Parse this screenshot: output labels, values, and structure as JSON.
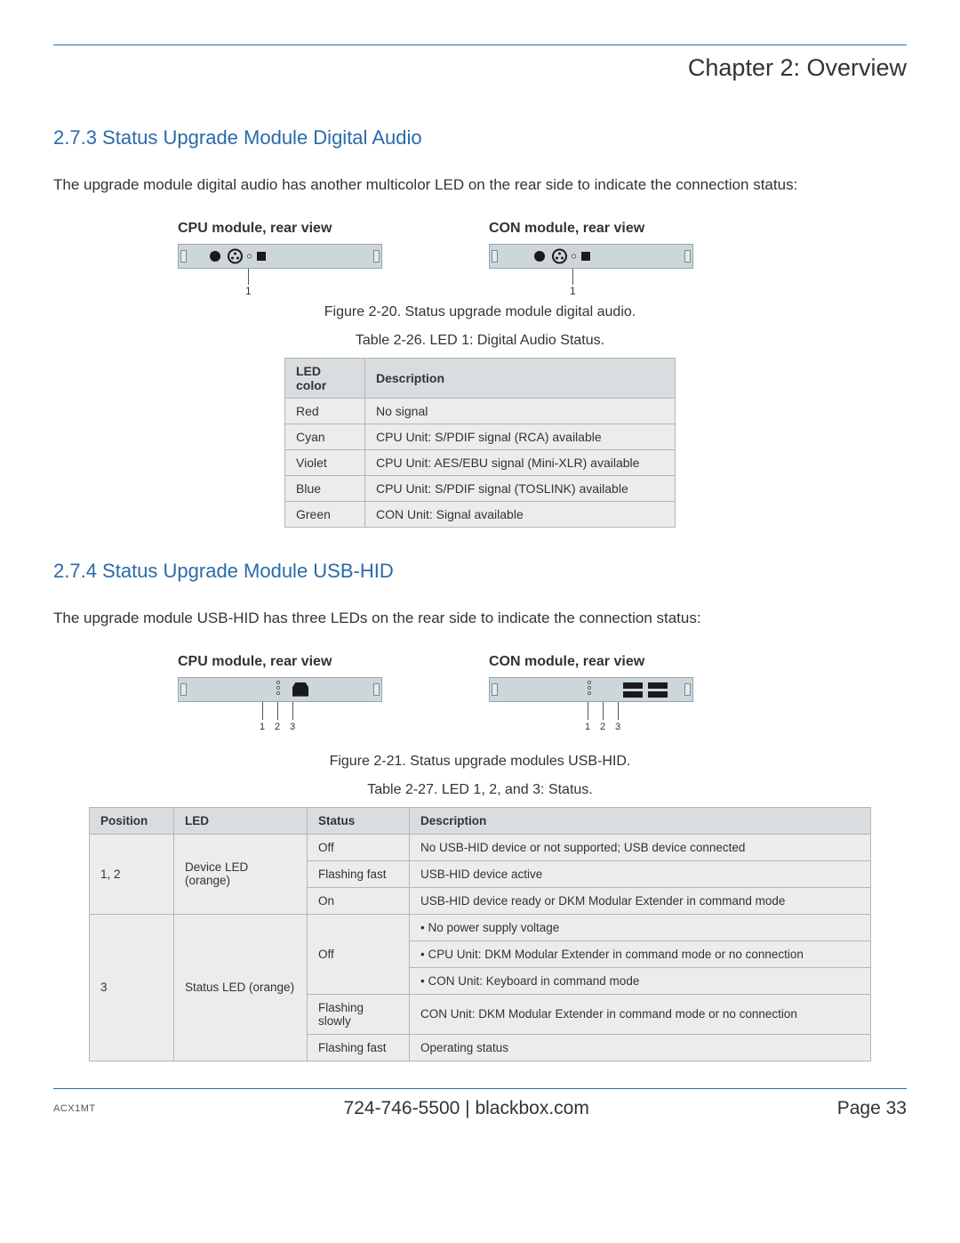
{
  "header": {
    "chapter_title": "Chapter 2: Overview"
  },
  "section1": {
    "heading": "2.7.3 Status Upgrade Module Digital Audio",
    "intro": "The upgrade module digital audio has another multicolor LED on the rear side to indicate the connection status:",
    "cpu_label": "CPU module, rear view",
    "con_label": "CON module, rear view",
    "fig_caption": "Figure 2-20. Status upgrade module digital audio.",
    "table_caption": "Table 2-26. LED 1: Digital Audio Status.",
    "callout_1": "1",
    "table": {
      "headers": [
        "LED color",
        "Description"
      ],
      "rows": [
        [
          "Red",
          "No signal"
        ],
        [
          "Cyan",
          "CPU Unit: S/PDIF signal (RCA) available"
        ],
        [
          "Violet",
          "CPU Unit: AES/EBU signal (Mini-XLR) available"
        ],
        [
          "Blue",
          "CPU Unit: S/PDIF signal (TOSLINK) available"
        ],
        [
          "Green",
          "CON Unit: Signal available"
        ]
      ]
    }
  },
  "section2": {
    "heading": "2.7.4 Status Upgrade Module USB-HID",
    "intro": "The upgrade module USB-HID has three LEDs on the rear side to indicate the connection status:",
    "cpu_label": "CPU module, rear view",
    "con_label": "CON module, rear view",
    "fig_caption": "Figure 2-21. Status upgrade modules USB-HID.",
    "table_caption": "Table 2-27. LED 1, 2, and 3: Status.",
    "callouts": {
      "n1": "1",
      "n2": "2",
      "n3": "3"
    },
    "table": {
      "headers": [
        "Position",
        "LED",
        "Status",
        "Description"
      ],
      "rows": [
        {
          "position": "1, 2",
          "led": "Device LED (orange)",
          "cells": [
            [
              "Off",
              "No USB-HID device or not supported; USB device connected"
            ],
            [
              "Flashing fast",
              "USB-HID device active"
            ],
            [
              "On",
              "USB-HID device ready or DKM Modular Extender in command mode"
            ]
          ]
        },
        {
          "position": "3",
          "led": "Status LED (orange)",
          "cells": [
            [
              "Off",
              [
                "No power supply voltage",
                "CPU Unit: DKM Modular Extender in command mode  or no connection",
                "CON Unit: Keyboard in command mode"
              ]
            ],
            [
              "Flashing slowly",
              "CON Unit: DKM Modular Extender in command mode or no connection"
            ],
            [
              "Flashing fast",
              "Operating status"
            ]
          ]
        }
      ]
    }
  },
  "footer": {
    "product": "ACX1MT",
    "phone": "724-746-5500",
    "sep": "   |   ",
    "site": "blackbox.com",
    "page": "Page 33"
  },
  "colors": {
    "accent": "#2a6aa8",
    "panel_bg": "#cdd7db",
    "cell_bg": "#ececec",
    "header_bg": "#d9dde0"
  }
}
